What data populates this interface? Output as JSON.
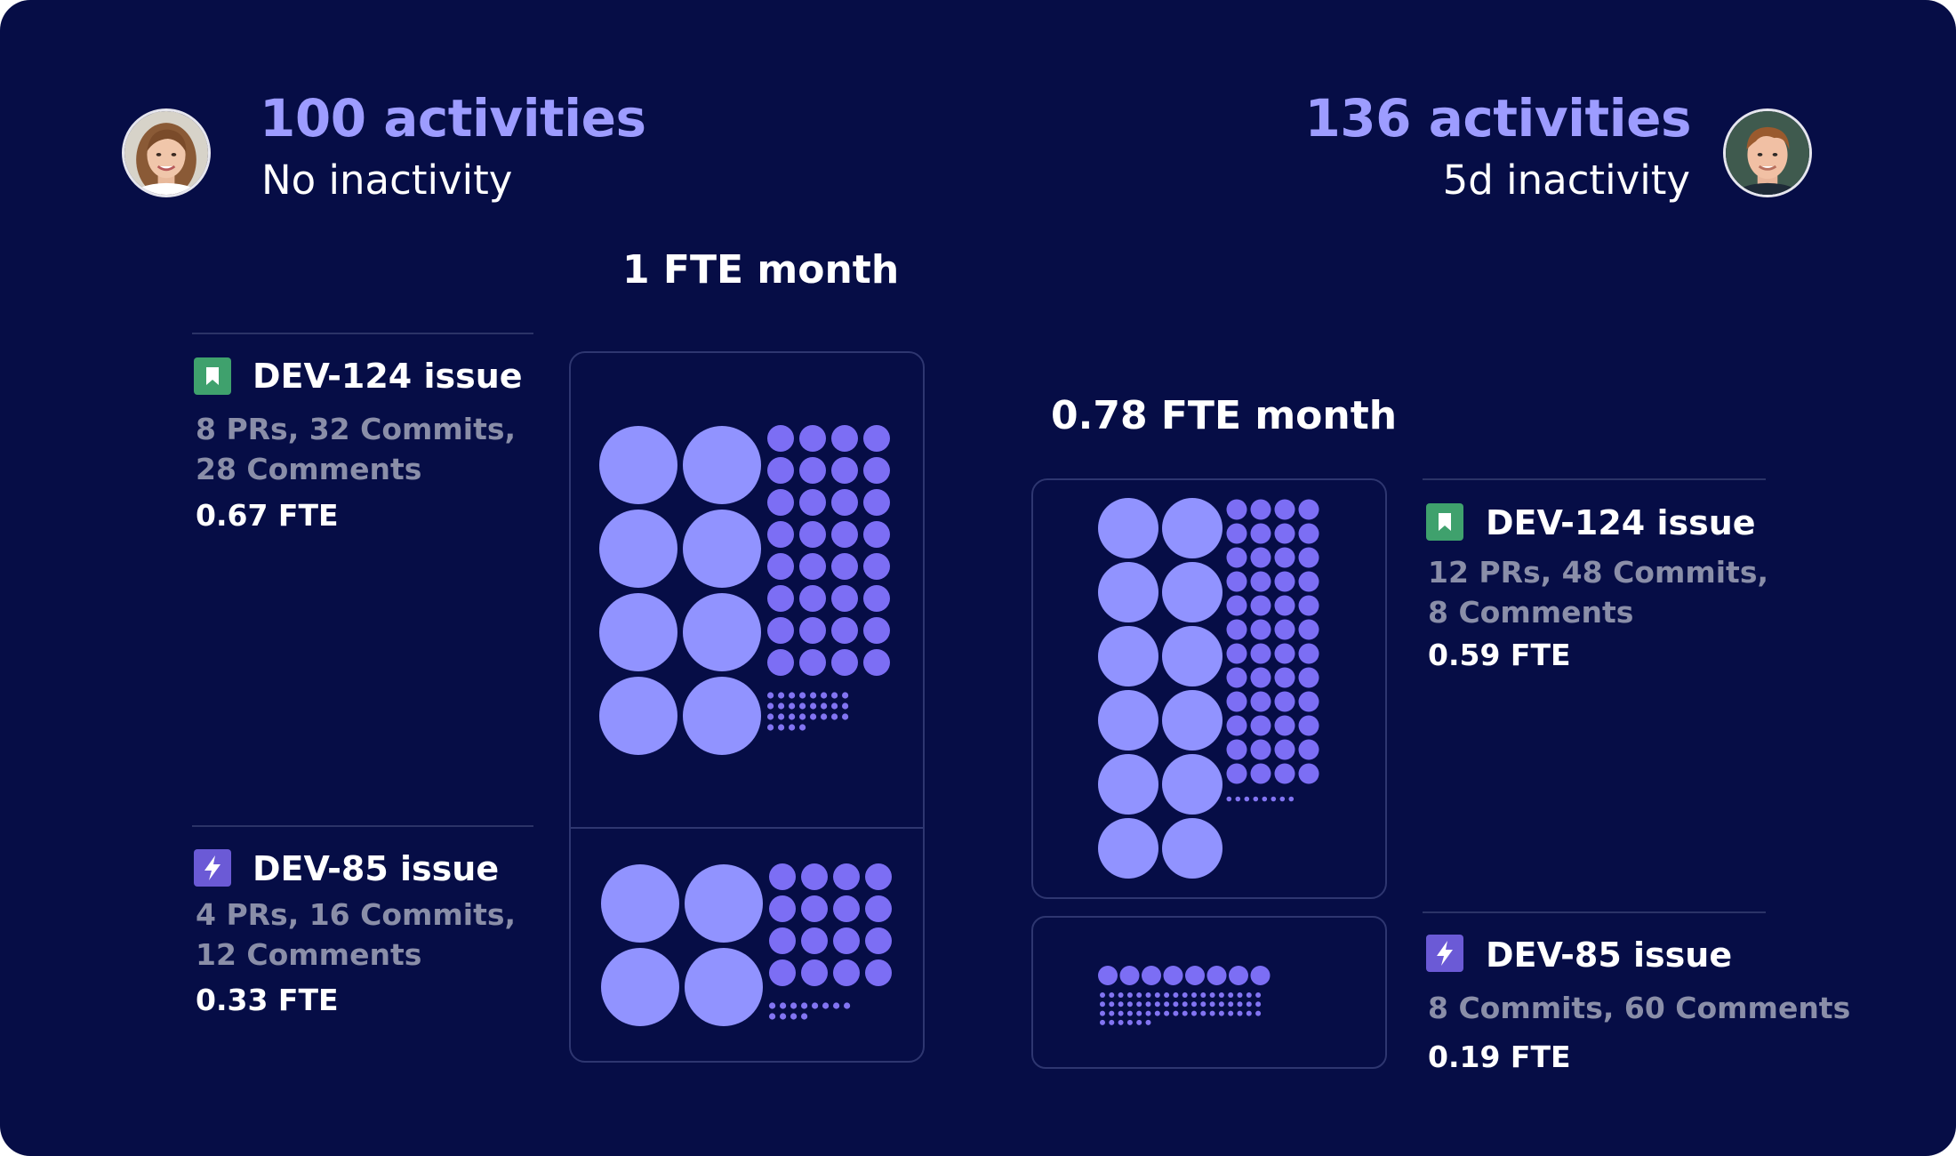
{
  "colors": {
    "background": "#060d46",
    "accent": "#9d9cff",
    "large_dot": "#9193ff",
    "medium_dot": "#7c6ef4",
    "small_dot": "#8274f2",
    "divider": "#2b3367",
    "bookmark_icon_bg": "#3fa16d",
    "bolt_icon_bg": "#6b5ad6"
  },
  "left_person": {
    "avatar_icon": "avatar-woman-icon",
    "activities": "100 activities",
    "inactivity": "No inactivity",
    "fte_title": "1 FTE month",
    "issues": [
      {
        "icon": "bookmark-icon",
        "title": "DEV-124 issue",
        "stats_line1": "8 PRs, 32 Commits,",
        "stats_line2": "28 Comments",
        "fte": "0.67 FTE",
        "large_dots": 8,
        "medium_dots": 32,
        "small_dots": 28
      },
      {
        "icon": "bolt-icon",
        "title": "DEV-85 issue",
        "stats_line1": "4 PRs, 16 Commits,",
        "stats_line2": "12 Comments",
        "fte": "0.33 FTE",
        "large_dots": 4,
        "medium_dots": 16,
        "small_dots": 12
      }
    ]
  },
  "right_person": {
    "avatar_icon": "avatar-man-icon",
    "activities": "136 activities",
    "inactivity": "5d inactivity",
    "fte_title": "0.78 FTE month",
    "issues": [
      {
        "icon": "bookmark-icon",
        "title": "DEV-124 issue",
        "stats_line1": "12 PRs, 48 Commits,",
        "stats_line2": "8 Comments",
        "fte": "0.59 FTE",
        "large_dots": 12,
        "medium_dots": 48,
        "small_dots": 8
      },
      {
        "icon": "bolt-icon",
        "title": "DEV-85 issue",
        "stats_line1": "8 Commits, 60 Comments",
        "stats_line2": "",
        "fte": "0.19 FTE",
        "large_dots": 0,
        "medium_dots": 8,
        "small_dots": 60
      }
    ]
  }
}
